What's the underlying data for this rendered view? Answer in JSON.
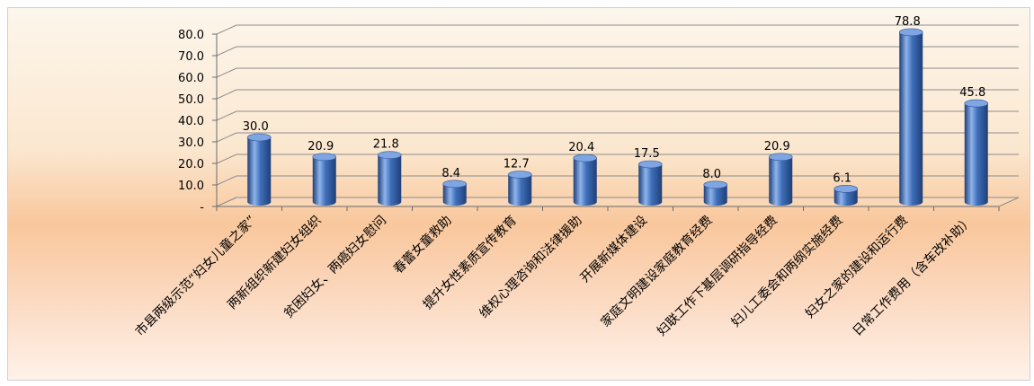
{
  "chart_data": {
    "type": "bar",
    "categories": [
      "市县两级示范“妇女儿童之家”",
      "两新组织新建妇女组织",
      "贫困妇女、两癌妇女慰问",
      "春蕾女童救助",
      "提升女性素质宣传教育",
      "维权心理咨询和法律援助",
      "开展新媒体建设",
      "家庭文明建设家庭教育经费",
      "妇联工作下基层调研指导经费",
      "妇儿工委会和两纲实施经费",
      "妇女之家的建设和运行费",
      "日常工作费用（含车改补助）"
    ],
    "values": [
      30.0,
      20.9,
      21.8,
      8.4,
      12.7,
      20.4,
      17.5,
      8.0,
      20.9,
      6.1,
      78.8,
      45.8
    ],
    "value_labels": [
      "30.0",
      "20.9",
      "21.8",
      "8.4",
      "12.7",
      "20.4",
      "17.5",
      "8.0",
      "20.9",
      "6.1",
      "78.8",
      "45.8"
    ],
    "yticks": [
      "-",
      "10.0",
      "20.0",
      "30.0",
      "40.0",
      "50.0",
      "60.0",
      "70.0",
      "80.0"
    ],
    "ylim": [
      0,
      80
    ],
    "grid": true,
    "bar_color": "#3f6fba",
    "bar_highlight": "#8fb4ec",
    "bar_shadow": "#1f3f78"
  }
}
